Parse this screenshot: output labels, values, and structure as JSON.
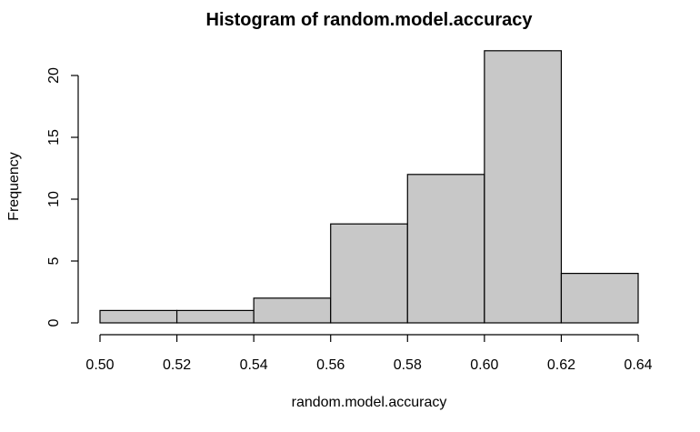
{
  "chart_data": {
    "type": "bar",
    "title": "Histogram of random.model.accuracy",
    "xlabel": "random.model.accuracy",
    "ylabel": "Frequency",
    "bins": [
      {
        "start": 0.5,
        "end": 0.52,
        "count": 1
      },
      {
        "start": 0.52,
        "end": 0.54,
        "count": 1
      },
      {
        "start": 0.54,
        "end": 0.56,
        "count": 2
      },
      {
        "start": 0.56,
        "end": 0.58,
        "count": 8
      },
      {
        "start": 0.58,
        "end": 0.6,
        "count": 12
      },
      {
        "start": 0.6,
        "end": 0.62,
        "count": 22
      },
      {
        "start": 0.62,
        "end": 0.64,
        "count": 4
      }
    ],
    "xlim": [
      0.5,
      0.64
    ],
    "ylim": [
      0,
      20
    ],
    "x_ticks": [
      "0.50",
      "0.52",
      "0.54",
      "0.56",
      "0.58",
      "0.60",
      "0.62",
      "0.64"
    ],
    "y_ticks": [
      "0",
      "5",
      "10",
      "15",
      "20"
    ],
    "bar_color": "#c8c8c8",
    "grid": false
  }
}
